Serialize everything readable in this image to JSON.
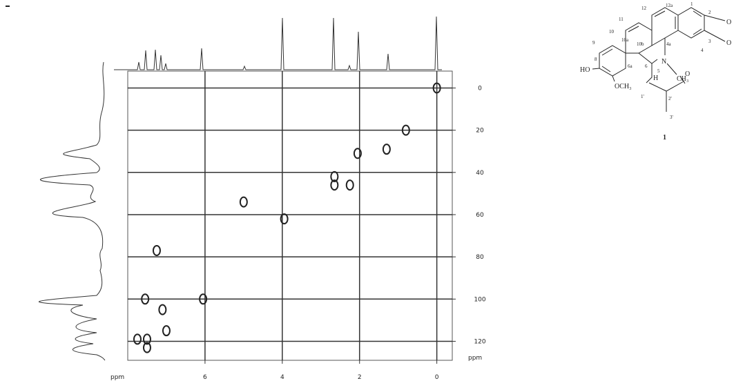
{
  "chart_data": {
    "type": "scatter",
    "x": [
      0,
      0.8,
      1.3,
      2.05,
      2.65,
      2.65,
      2.25,
      5.0,
      3.95,
      7.25,
      7.55,
      7.1,
      6.05,
      7.0,
      7.75,
      7.5,
      7.5
    ],
    "y": [
      0,
      20,
      29,
      31,
      42,
      46,
      46,
      54,
      62,
      77,
      100,
      105,
      100,
      115,
      119,
      119,
      123
    ],
    "color": "#222222",
    "xlim": [
      8,
      -0.4
    ],
    "ylim": [
      -8,
      129
    ],
    "xticks": [
      6,
      4,
      2,
      0
    ],
    "yticks": [
      0,
      20,
      40,
      60,
      80,
      100,
      120
    ],
    "x_label": "ppm",
    "y_label": "ppm",
    "grid": true
  },
  "structure": {
    "labels": [
      "12",
      "12a",
      "1",
      "2",
      "O",
      "11",
      "10",
      "10a",
      "9",
      "10b",
      "4a",
      "3",
      "O",
      "4",
      "8",
      "HO",
      "6a",
      "6",
      "N",
      "5",
      "H",
      "CH₃",
      "OCH₃",
      "1'",
      "2'",
      "O",
      "3'",
      "1"
    ]
  }
}
